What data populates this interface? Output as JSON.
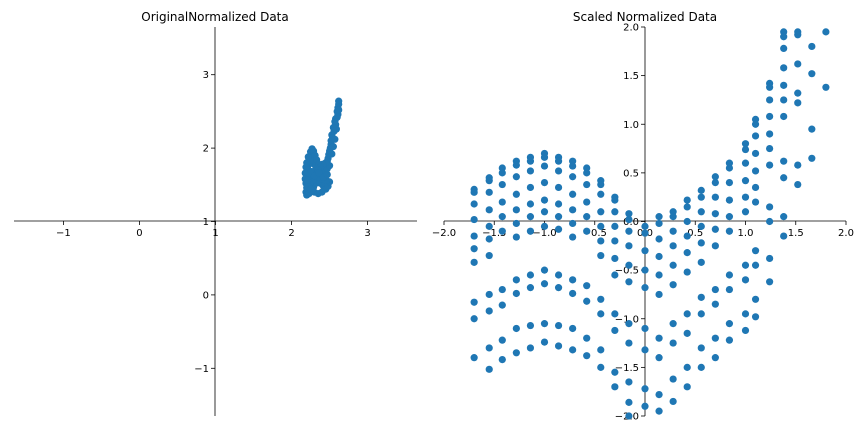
{
  "chart_data": [
    {
      "type": "scatter",
      "title": "OriginalNormalized Data",
      "color": "#1f77b4",
      "spines": "centered at x=1 (vertical) and y=1 (horizontal)",
      "xlim": [
        -1.65,
        3.65
      ],
      "ylim": [
        -1.65,
        3.65
      ],
      "xticks": [
        {
          "value": -1,
          "label": "−1"
        },
        {
          "value": 0,
          "label": "0"
        },
        {
          "value": 1,
          "label": "1"
        },
        {
          "value": 2,
          "label": "2"
        },
        {
          "value": 3,
          "label": "3"
        }
      ],
      "yticks": [
        {
          "value": -1,
          "label": "−1"
        },
        {
          "value": 0,
          "label": "0"
        },
        {
          "value": 1,
          "label": "1"
        },
        {
          "value": 2,
          "label": "2"
        },
        {
          "value": 3,
          "label": "3"
        }
      ],
      "points": [
        [
          2.62,
          2.64
        ],
        [
          2.62,
          2.6
        ],
        [
          2.61,
          2.55
        ],
        [
          2.6,
          2.5
        ],
        [
          2.61,
          2.46
        ],
        [
          2.58,
          2.4
        ],
        [
          2.57,
          2.36
        ],
        [
          2.58,
          2.32
        ],
        [
          2.55,
          2.28
        ],
        [
          2.56,
          2.23
        ],
        [
          2.53,
          2.18
        ],
        [
          2.54,
          2.14
        ],
        [
          2.52,
          2.1
        ],
        [
          2.52,
          2.05
        ],
        [
          2.51,
          2.0
        ],
        [
          2.5,
          1.96
        ],
        [
          2.49,
          1.91
        ],
        [
          2.48,
          1.86
        ],
        [
          2.47,
          1.82
        ],
        [
          2.46,
          1.78
        ],
        [
          2.45,
          1.74
        ],
        [
          2.44,
          1.7
        ],
        [
          2.42,
          1.66
        ],
        [
          2.4,
          1.62
        ],
        [
          2.38,
          1.6
        ],
        [
          2.36,
          1.63
        ],
        [
          2.34,
          1.67
        ],
        [
          2.32,
          1.72
        ],
        [
          2.3,
          1.78
        ],
        [
          2.28,
          1.84
        ],
        [
          2.26,
          1.9
        ],
        [
          2.25,
          1.95
        ],
        [
          2.27,
          1.99
        ],
        [
          2.29,
          1.96
        ],
        [
          2.31,
          1.9
        ],
        [
          2.33,
          1.84
        ],
        [
          2.36,
          1.78
        ],
        [
          2.4,
          1.72
        ],
        [
          2.44,
          1.68
        ],
        [
          2.47,
          1.72
        ],
        [
          2.5,
          1.76
        ],
        [
          2.45,
          1.8
        ],
        [
          2.41,
          1.78
        ],
        [
          2.38,
          1.74
        ],
        [
          2.35,
          1.7
        ],
        [
          2.32,
          1.66
        ],
        [
          2.28,
          1.62
        ],
        [
          2.24,
          1.6
        ],
        [
          2.22,
          1.64
        ],
        [
          2.2,
          1.68
        ],
        [
          2.21,
          1.73
        ],
        [
          2.23,
          1.78
        ],
        [
          2.24,
          1.84
        ],
        [
          2.22,
          1.88
        ],
        [
          2.2,
          1.8
        ],
        [
          2.19,
          1.74
        ],
        [
          2.18,
          1.66
        ],
        [
          2.18,
          1.58
        ],
        [
          2.19,
          1.52
        ],
        [
          2.2,
          1.46
        ],
        [
          2.19,
          1.4
        ],
        [
          2.2,
          1.36
        ],
        [
          2.23,
          1.38
        ],
        [
          2.26,
          1.42
        ],
        [
          2.29,
          1.47
        ],
        [
          2.32,
          1.52
        ],
        [
          2.35,
          1.55
        ],
        [
          2.38,
          1.52
        ],
        [
          2.42,
          1.48
        ],
        [
          2.45,
          1.44
        ],
        [
          2.48,
          1.48
        ],
        [
          2.5,
          1.54
        ],
        [
          2.46,
          1.56
        ],
        [
          2.4,
          1.58
        ],
        [
          2.34,
          1.6
        ],
        [
          2.28,
          1.56
        ],
        [
          2.24,
          1.52
        ],
        [
          2.22,
          1.48
        ],
        [
          2.25,
          1.44
        ],
        [
          2.3,
          1.4
        ],
        [
          2.35,
          1.38
        ],
        [
          2.4,
          1.4
        ],
        [
          2.21,
          1.56
        ],
        [
          2.26,
          1.68
        ],
        [
          2.3,
          1.62
        ],
        [
          2.36,
          1.66
        ],
        [
          2.42,
          1.6
        ],
        [
          2.47,
          1.64
        ],
        [
          2.53,
          1.92
        ],
        [
          2.55,
          2.02
        ],
        [
          2.57,
          2.12
        ],
        [
          2.59,
          2.26
        ],
        [
          2.6,
          2.42
        ],
        [
          2.62,
          2.52
        ]
      ]
    },
    {
      "type": "scatter",
      "title": "Scaled Normalized Data",
      "color": "#1f77b4",
      "spines": "centered at origin",
      "xlim": [
        -2.0,
        2.0
      ],
      "ylim": [
        -2.0,
        2.0
      ],
      "xticks": [
        {
          "value": -2.0,
          "label": "−2.0"
        },
        {
          "value": -1.5,
          "label": "−1.5"
        },
        {
          "value": -1.0,
          "label": "−1.0"
        },
        {
          "value": -0.5,
          "label": "−0.5"
        },
        {
          "value": 0.0,
          "label": "0.0"
        },
        {
          "value": 0.5,
          "label": "0.5"
        },
        {
          "value": 1.0,
          "label": "1.0"
        },
        {
          "value": 1.5,
          "label": "1.5"
        },
        {
          "value": 2.0,
          "label": "2.0"
        }
      ],
      "yticks": [
        {
          "value": -2.0,
          "label": "−2.0"
        },
        {
          "value": -1.5,
          "label": "−1.5"
        },
        {
          "value": -1.0,
          "label": "−1.0"
        },
        {
          "value": -0.5,
          "label": "−0.5"
        },
        {
          "value": 0.0,
          "label": "0.0"
        },
        {
          "value": 0.5,
          "label": "0.5"
        },
        {
          "value": 1.0,
          "label": "1.0"
        },
        {
          "value": 1.5,
          "label": "1.5"
        },
        {
          "value": 2.0,
          "label": "2.0"
        }
      ],
      "point_columns": [
        {
          "x": -1.7,
          "y": [
            0.33,
            0.3,
            0.18,
            0.02,
            -0.15,
            -0.28,
            -0.42,
            -0.83,
            -1.0,
            -1.4
          ]
        },
        {
          "x": -1.55,
          "y": [
            0.45,
            0.42,
            0.3,
            0.12,
            -0.05,
            -0.18,
            -0.35,
            -0.75,
            -0.92,
            -1.3,
            -1.52
          ]
        },
        {
          "x": -1.42,
          "y": [
            0.55,
            0.5,
            0.38,
            0.2,
            0.05,
            -0.1,
            -0.7,
            -0.86,
            -1.22,
            -1.42
          ]
        },
        {
          "x": -1.28,
          "y": [
            0.62,
            0.58,
            0.46,
            0.28,
            0.12,
            -0.02,
            -0.16,
            -0.6,
            -0.74,
            -1.1,
            -1.35
          ]
        },
        {
          "x": -1.14,
          "y": [
            0.66,
            0.62,
            0.52,
            0.35,
            0.18,
            0.05,
            -0.1,
            -0.55,
            -0.68,
            -1.07,
            -1.3
          ]
        },
        {
          "x": -1.0,
          "y": [
            0.7,
            0.66,
            0.57,
            0.4,
            0.22,
            0.1,
            -0.05,
            -0.5,
            -0.64,
            -1.05,
            -1.24
          ]
        },
        {
          "x": -0.86,
          "y": [
            0.66,
            0.62,
            0.52,
            0.35,
            0.18,
            0.05,
            -0.08,
            -0.55,
            -0.68,
            -1.07,
            -1.28
          ]
        },
        {
          "x": -0.72,
          "y": [
            0.62,
            0.57,
            0.46,
            0.28,
            0.12,
            -0.02,
            -0.16,
            -0.6,
            -0.74,
            -1.1,
            -1.32
          ]
        },
        {
          "x": -0.58,
          "y": [
            0.55,
            0.5,
            0.38,
            0.2,
            0.05,
            -0.1,
            -0.66,
            -0.82,
            -1.2,
            -1.38
          ]
        },
        {
          "x": -0.44,
          "y": [
            0.42,
            0.38,
            0.28,
            0.1,
            -0.05,
            -0.2,
            -0.35,
            -0.8,
            -0.95,
            -1.32,
            -1.5
          ]
        },
        {
          "x": -0.3,
          "y": [
            0.25,
            0.22,
            0.1,
            -0.05,
            -0.2,
            -0.38,
            -0.55,
            -0.95,
            -1.12,
            -1.55,
            -1.7
          ]
        },
        {
          "x": -0.16,
          "y": [
            0.08,
            0.02,
            -0.1,
            -0.25,
            -0.45,
            -0.62,
            -1.05,
            -1.25,
            -1.65,
            -1.86,
            -2.0
          ]
        },
        {
          "x": 0.0,
          "y": [
            -0.05,
            -0.12,
            -0.3,
            -0.5,
            -0.68,
            -1.1,
            -1.32,
            -1.72,
            -1.9
          ]
        },
        {
          "x": 0.14,
          "y": [
            0.05,
            -0.02,
            -0.18,
            -0.36,
            -0.55,
            -0.75,
            -1.2,
            -1.4,
            -1.78,
            -1.95
          ]
        },
        {
          "x": 0.28,
          "y": [
            0.1,
            0.05,
            -0.1,
            -0.25,
            -0.45,
            -0.65,
            -1.05,
            -1.25,
            -1.62,
            -1.85
          ]
        },
        {
          "x": 0.42,
          "y": [
            0.22,
            0.15,
            0.0,
            -0.15,
            -0.32,
            -0.52,
            -0.95,
            -1.15,
            -1.5,
            -1.7
          ]
        },
        {
          "x": 0.56,
          "y": [
            0.32,
            0.25,
            0.1,
            -0.05,
            -0.22,
            -0.42,
            -0.78,
            -0.95,
            -1.3,
            -1.5
          ]
        },
        {
          "x": 0.7,
          "y": [
            0.46,
            0.4,
            0.25,
            0.08,
            -0.08,
            -0.25,
            -0.7,
            -0.85,
            -1.2,
            -1.4
          ]
        },
        {
          "x": 0.84,
          "y": [
            0.6,
            0.55,
            0.4,
            0.22,
            0.05,
            -0.1,
            -0.55,
            -0.7,
            -1.05,
            -1.22
          ]
        },
        {
          "x": 1.0,
          "y": [
            0.8,
            0.74,
            0.6,
            0.42,
            0.25,
            0.1,
            -0.45,
            -0.6,
            -0.95,
            -1.12
          ]
        },
        {
          "x": 1.1,
          "y": [
            1.05,
            1.0,
            0.88,
            0.7,
            0.52,
            0.35,
            0.2,
            -0.3,
            -0.45,
            -0.8,
            -0.98
          ]
        },
        {
          "x": 1.24,
          "y": [
            1.42,
            1.38,
            1.25,
            1.08,
            0.9,
            0.75,
            0.58,
            0.15,
            0.0,
            -0.38,
            -0.62
          ]
        },
        {
          "x": 1.38,
          "y": [
            1.95,
            1.9,
            1.78,
            1.58,
            1.4,
            1.25,
            1.08,
            0.62,
            0.45,
            0.05,
            -0.15
          ]
        },
        {
          "x": 1.52,
          "y": [
            1.95,
            1.92,
            1.62,
            1.32,
            1.22,
            0.58,
            0.38
          ]
        },
        {
          "x": 1.66,
          "y": [
            1.8,
            1.52,
            0.95,
            0.65
          ]
        },
        {
          "x": 1.8,
          "y": [
            1.95,
            1.38
          ]
        }
      ]
    }
  ]
}
